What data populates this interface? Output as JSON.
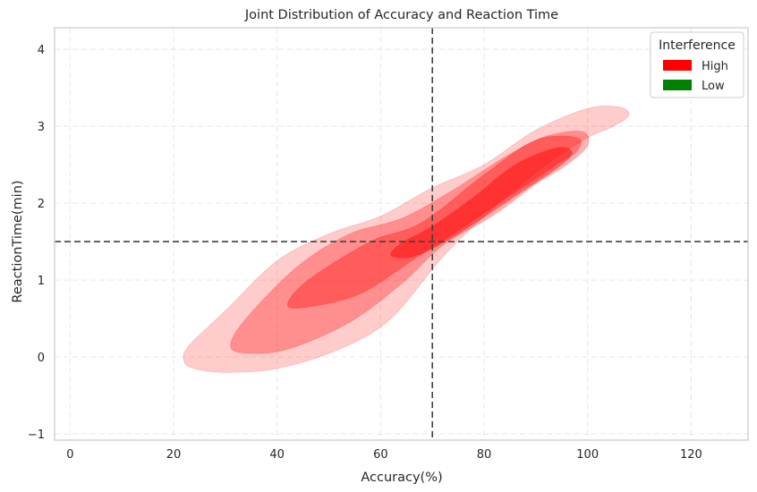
{
  "chart_data": {
    "type": "contour",
    "title": "Joint Distribution of Accuracy and Reaction Time",
    "xlabel": "Accuracy(%)",
    "ylabel": "ReactionTime(min)",
    "xlim": [
      -3,
      131
    ],
    "ylim": [
      -1.08,
      4.28
    ],
    "x_ticks": [
      0,
      20,
      40,
      60,
      80,
      100,
      120
    ],
    "y_ticks": [
      -1,
      0,
      1,
      2,
      3,
      4
    ],
    "grid": true,
    "reference_lines": {
      "vertical_x": 70,
      "horizontal_y": 1.5
    },
    "legend": {
      "title": "Interference",
      "placement": "top-right",
      "entries": [
        {
          "label": "High",
          "color": "#ff0000"
        },
        {
          "label": "Low",
          "color": "#008000"
        }
      ]
    },
    "series": [
      {
        "name": "High",
        "color": "#ff0000",
        "levels": [
          {
            "level": 1,
            "opacity": 0.2,
            "polygon": [
              [
                22,
                -0.05
              ],
              [
                24,
                -0.15
              ],
              [
                30,
                -0.2
              ],
              [
                40,
                -0.15
              ],
              [
                52,
                0.1
              ],
              [
                62,
                0.5
              ],
              [
                72,
                1.3
              ],
              [
                82,
                1.95
              ],
              [
                92,
                2.5
              ],
              [
                100,
                2.85
              ],
              [
                105,
                3.0
              ],
              [
                108,
                3.15
              ],
              [
                106,
                3.25
              ],
              [
                100,
                3.23
              ],
              [
                90,
                2.95
              ],
              [
                80,
                2.5
              ],
              [
                70,
                2.2
              ],
              [
                60,
                1.83
              ],
              [
                50,
                1.6
              ],
              [
                40,
                1.25
              ],
              [
                30,
                0.6
              ],
              [
                23,
                0.15
              ]
            ]
          },
          {
            "level": 2,
            "opacity": 0.3,
            "polygon": [
              [
                31,
                0.15
              ],
              [
                34,
                0.05
              ],
              [
                42,
                0.1
              ],
              [
                54,
                0.45
              ],
              [
                64,
                0.95
              ],
              [
                72,
                1.45
              ],
              [
                82,
                1.85
              ],
              [
                90,
                2.25
              ],
              [
                96,
                2.5
              ],
              [
                100,
                2.75
              ],
              [
                99,
                2.93
              ],
              [
                92,
                2.87
              ],
              [
                84,
                2.6
              ],
              [
                74,
                2.17
              ],
              [
                64,
                1.8
              ],
              [
                54,
                1.6
              ],
              [
                44,
                1.18
              ],
              [
                34,
                0.5
              ]
            ]
          },
          {
            "level": 3,
            "opacity": 0.35,
            "polygon": [
              [
                42,
                0.68
              ],
              [
                46,
                0.65
              ],
              [
                56,
                0.82
              ],
              [
                66,
                1.25
              ],
              [
                74,
                1.6
              ],
              [
                84,
                2.05
              ],
              [
                94,
                2.5
              ],
              [
                98,
                2.68
              ],
              [
                98,
                2.85
              ],
              [
                90,
                2.82
              ],
              [
                80,
                2.37
              ],
              [
                68,
                1.75
              ],
              [
                58,
                1.5
              ],
              [
                46,
                1.0
              ]
            ]
          },
          {
            "level": 4,
            "opacity": 0.45,
            "polygon": [
              [
                62,
                1.32
              ],
              [
                66,
                1.3
              ],
              [
                72,
                1.48
              ],
              [
                80,
                1.82
              ],
              [
                88,
                2.18
              ],
              [
                94,
                2.45
              ],
              [
                97,
                2.65
              ],
              [
                94,
                2.72
              ],
              [
                86,
                2.5
              ],
              [
                78,
                2.08
              ],
              [
                70,
                1.7
              ],
              [
                64,
                1.48
              ]
            ]
          }
        ]
      },
      {
        "name": "Low",
        "color": "#008000",
        "levels": []
      }
    ]
  }
}
